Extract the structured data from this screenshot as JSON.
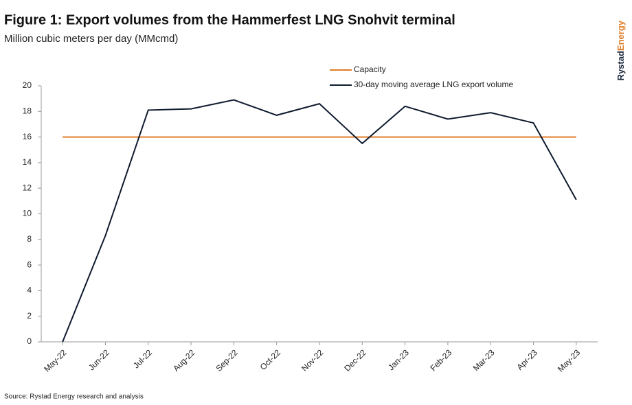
{
  "chart_data": {
    "type": "line",
    "title": "Figure 1: Export volumes from the Hammerfest LNG Snohvit terminal",
    "subtitle": "Million cubic meters per day (MMcmd)",
    "source": "Source: Rystad Energy research and analysis",
    "logo": [
      "Rystad",
      "Energy"
    ],
    "categories": [
      "May-22",
      "Jun-22",
      "Jul-22",
      "Aug-22",
      "Sep-22",
      "Oct-22",
      "Nov-22",
      "Dec-22",
      "Jan-23",
      "Feb-23",
      "Mar-23",
      "Apr-23",
      "May-23"
    ],
    "series": [
      {
        "name": "Capacity",
        "color": "#e07c28",
        "values": [
          16,
          16,
          16,
          16,
          16,
          16,
          16,
          16,
          16,
          16,
          16,
          16,
          16
        ]
      },
      {
        "name": "30-day moving average LNG export volume",
        "color": "#0e1a2f",
        "values": [
          0,
          8.3,
          18.1,
          18.2,
          18.9,
          17.7,
          18.6,
          15.5,
          18.4,
          17.4,
          17.9,
          17.1,
          11.1
        ]
      }
    ],
    "ylim": [
      0,
      20
    ],
    "yticks": [
      0,
      2,
      4,
      6,
      8,
      10,
      12,
      14,
      16,
      18,
      20
    ],
    "grid": false
  }
}
